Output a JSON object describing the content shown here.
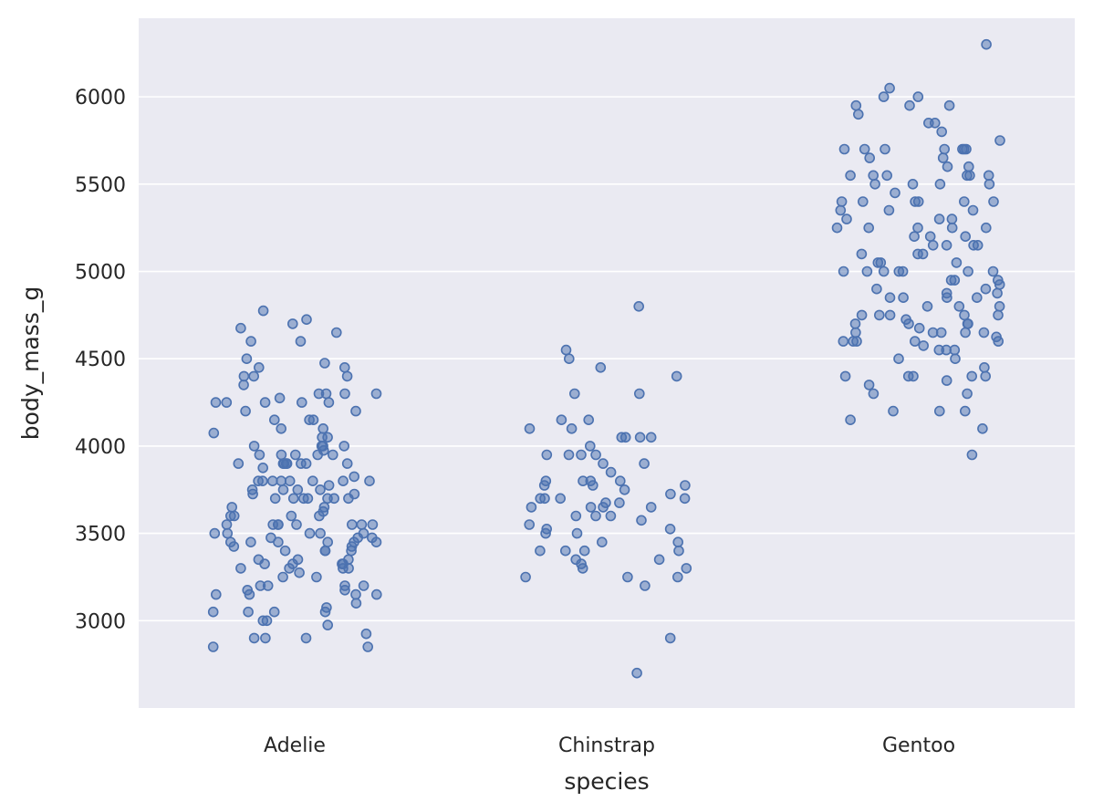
{
  "chart_data": {
    "type": "scatter",
    "subtype": "stripplot",
    "title": "",
    "xlabel": "species",
    "ylabel": "body_mass_g",
    "categories": [
      "Adelie",
      "Chinstrap",
      "Gentoo"
    ],
    "y_ticks": [
      3000,
      3500,
      4000,
      4500,
      5000,
      5500,
      6000
    ],
    "ylim": [
      2500,
      6450
    ],
    "grid": true,
    "legend": "none",
    "colors": {
      "background": "#eaeaf2",
      "grid": "#ffffff",
      "point": "#4c72b0"
    },
    "series": [
      {
        "category": "Adelie",
        "values": [
          3750,
          3800,
          3250,
          3450,
          3650,
          3625,
          4675,
          3475,
          4250,
          3300,
          3700,
          3200,
          3800,
          4400,
          3700,
          3450,
          4500,
          3325,
          4200,
          3400,
          3600,
          3800,
          3950,
          3800,
          3800,
          3550,
          3200,
          3150,
          3950,
          3250,
          3900,
          3300,
          3900,
          3325,
          4150,
          3950,
          3550,
          3300,
          4650,
          3150,
          3900,
          3100,
          4400,
          3000,
          4600,
          3425,
          2975,
          3450,
          4150,
          3500,
          4300,
          3450,
          4050,
          2900,
          3700,
          3550,
          3800,
          2850,
          3750,
          3150,
          4400,
          3600,
          4050,
          2850,
          3950,
          3350,
          4100,
          3050,
          4450,
          3600,
          3900,
          3550,
          4150,
          3700,
          4250,
          3700,
          3900,
          3550,
          4000,
          3200,
          4700,
          3800,
          4200,
          3350,
          3550,
          3800,
          3500,
          3950,
          3600,
          3550,
          4300,
          3400,
          4450,
          3300,
          4300,
          3700,
          4350,
          2900,
          4100,
          3725,
          4725,
          3075,
          4250,
          2925,
          3550,
          3750,
          3900,
          3175,
          4775,
          3825,
          4600,
          3200,
          4275,
          3900,
          4075,
          2900,
          3775,
          3350,
          3325,
          3150,
          3500,
          3450,
          3875,
          3050,
          4000,
          3275,
          4300,
          3050,
          4000,
          3325,
          3500,
          3500,
          4475,
          3425,
          3900,
          3175,
          3975,
          3400,
          4250,
          3400,
          3475,
          3050,
          3725,
          3000,
          3650,
          4250,
          3475,
          3450,
          3750,
          3700,
          4000
        ]
      },
      {
        "category": "Chinstrap",
        "values": [
          3500,
          3900,
          3650,
          3525,
          3725,
          3950,
          3250,
          3750,
          4150,
          3700,
          3800,
          3775,
          3700,
          4050,
          3575,
          4050,
          3300,
          3700,
          3450,
          4400,
          3600,
          3400,
          2900,
          3800,
          3300,
          4150,
          3400,
          3800,
          3700,
          4550,
          3200,
          4300,
          3350,
          4100,
          3600,
          3900,
          3850,
          4800,
          2700,
          4500,
          3950,
          3650,
          3550,
          3500,
          3675,
          4450,
          3400,
          4300,
          3250,
          3675,
          3325,
          3950,
          3600,
          4050,
          3350,
          3450,
          3250,
          4050,
          3800,
          3525,
          3950,
          3650,
          3650,
          4000,
          3400,
          3775,
          4100,
          3775
        ]
      },
      {
        "category": "Gentoo",
        "values": [
          4500,
          5700,
          4450,
          5700,
          5400,
          4550,
          4800,
          5200,
          4400,
          5150,
          4650,
          5550,
          4650,
          5850,
          4200,
          5850,
          4150,
          6300,
          4800,
          5350,
          5700,
          5000,
          4400,
          5050,
          5000,
          5100,
          4100,
          5650,
          4600,
          5550,
          5250,
          4700,
          5050,
          6050,
          5150,
          5400,
          4950,
          5250,
          4350,
          5350,
          3950,
          5700,
          4300,
          4750,
          5550,
          4900,
          4200,
          5400,
          5100,
          5300,
          4850,
          5300,
          4400,
          5000,
          4600,
          5050,
          4200,
          5400,
          4650,
          5200,
          4700,
          5550,
          4400,
          5800,
          4550,
          5350,
          4650,
          5150,
          4800,
          5700,
          4725,
          5000,
          4925,
          4700,
          5000,
          5500,
          5250,
          4875,
          5500,
          4850,
          5200,
          4625,
          5600,
          4600,
          5950,
          4575,
          4675,
          5300,
          4950,
          6000,
          4750,
          5700,
          5400,
          4850,
          5250,
          4750,
          5250,
          4600,
          4950,
          5600,
          4650,
          4875,
          5550,
          4500,
          5150,
          4600,
          5650,
          4375,
          5900,
          4300,
          5450,
          4550,
          6000,
          4900,
          5500,
          5400,
          4850,
          5950,
          5100,
          5750,
          5000,
          5950,
          4400,
          5550,
          4700,
          5500,
          4750,
          5700,
          4750,
          5000
        ]
      }
    ]
  }
}
